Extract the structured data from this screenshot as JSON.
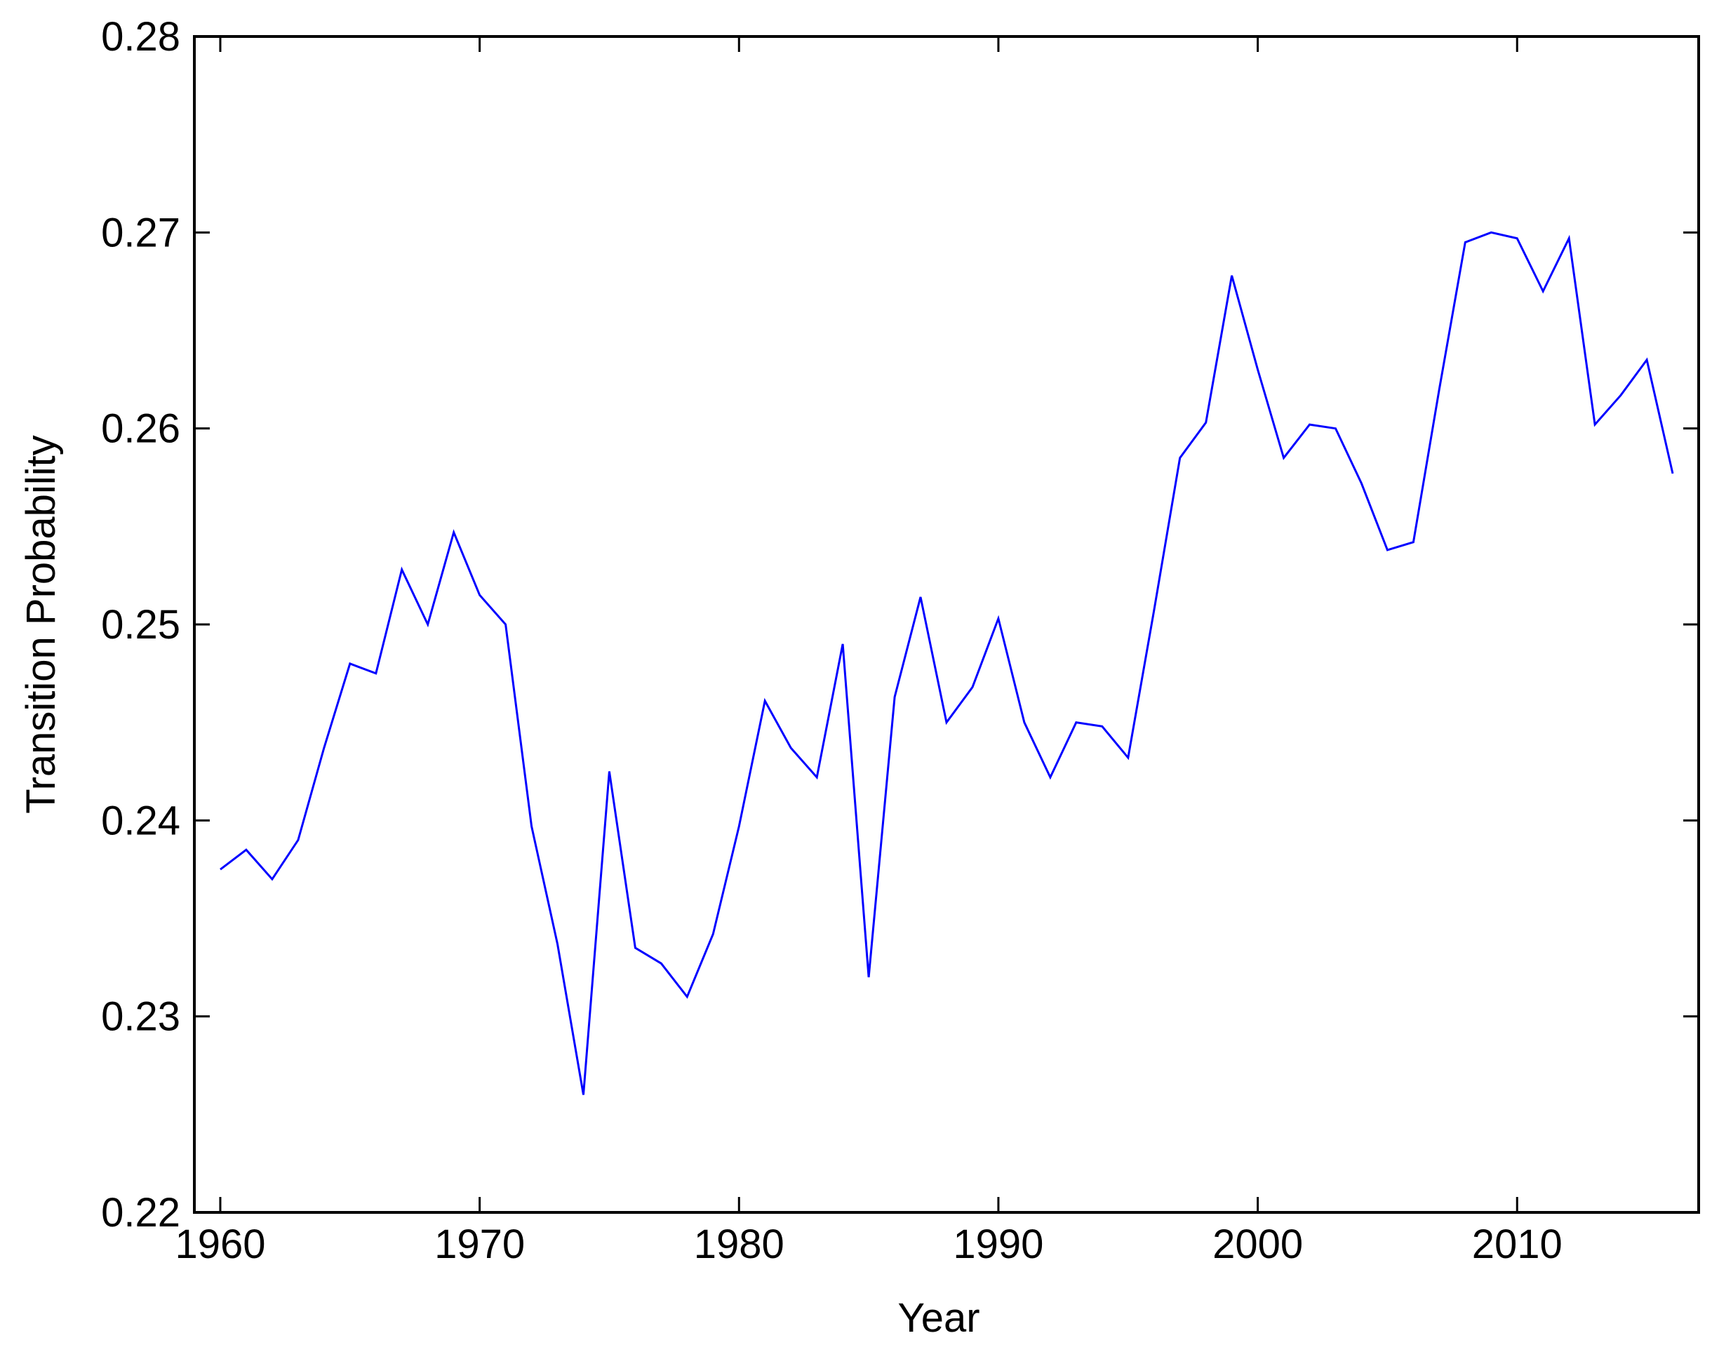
{
  "chart_data": {
    "type": "line",
    "title": "",
    "xlabel": "Year",
    "ylabel": "Transition Probability",
    "xlim": [
      1959,
      2017
    ],
    "ylim": [
      0.22,
      0.28
    ],
    "x_ticks": [
      1960,
      1970,
      1980,
      1990,
      2000,
      2010
    ],
    "x_tick_labels": [
      "1960",
      "1970",
      "1980",
      "1990",
      "2000",
      "2010"
    ],
    "y_ticks": [
      0.22,
      0.23,
      0.24,
      0.25,
      0.26,
      0.27,
      0.28
    ],
    "y_tick_labels": [
      "0.22",
      "0.23",
      "0.24",
      "0.25",
      "0.26",
      "0.27",
      "0.28"
    ],
    "grid": false,
    "series": [
      {
        "line_color": "#0000ff",
        "x": [
          1960,
          1961,
          1962,
          1963,
          1964,
          1965,
          1966,
          1967,
          1968,
          1969,
          1970,
          1971,
          1972,
          1973,
          1974,
          1975,
          1976,
          1977,
          1978,
          1979,
          1980,
          1981,
          1982,
          1983,
          1984,
          1985,
          1986,
          1987,
          1988,
          1989,
          1990,
          1991,
          1992,
          1993,
          1994,
          1995,
          1996,
          1997,
          1998,
          1999,
          2000,
          2001,
          2002,
          2003,
          2004,
          2005,
          2006,
          2007,
          2008,
          2009,
          2010,
          2011,
          2012,
          2013,
          2014,
          2015,
          2016
        ],
        "values": [
          0.2375,
          0.2385,
          0.237,
          0.239,
          0.2437,
          0.248,
          0.2475,
          0.2528,
          0.25,
          0.2547,
          0.2515,
          0.25,
          0.2397,
          0.2337,
          0.226,
          0.2425,
          0.2335,
          0.2327,
          0.231,
          0.2342,
          0.2397,
          0.2461,
          0.2437,
          0.2422,
          0.249,
          0.232,
          0.2463,
          0.2514,
          0.245,
          0.2468,
          0.2503,
          0.245,
          0.2422,
          0.245,
          0.2448,
          0.2432,
          0.2507,
          0.2585,
          0.2603,
          0.2678,
          0.263,
          0.2585,
          0.2602,
          0.26,
          0.2572,
          0.2538,
          0.2542,
          0.262,
          0.2695,
          0.27,
          0.2697,
          0.267,
          0.2697,
          0.2602,
          0.2617,
          0.2635,
          0.2577
        ]
      }
    ]
  }
}
